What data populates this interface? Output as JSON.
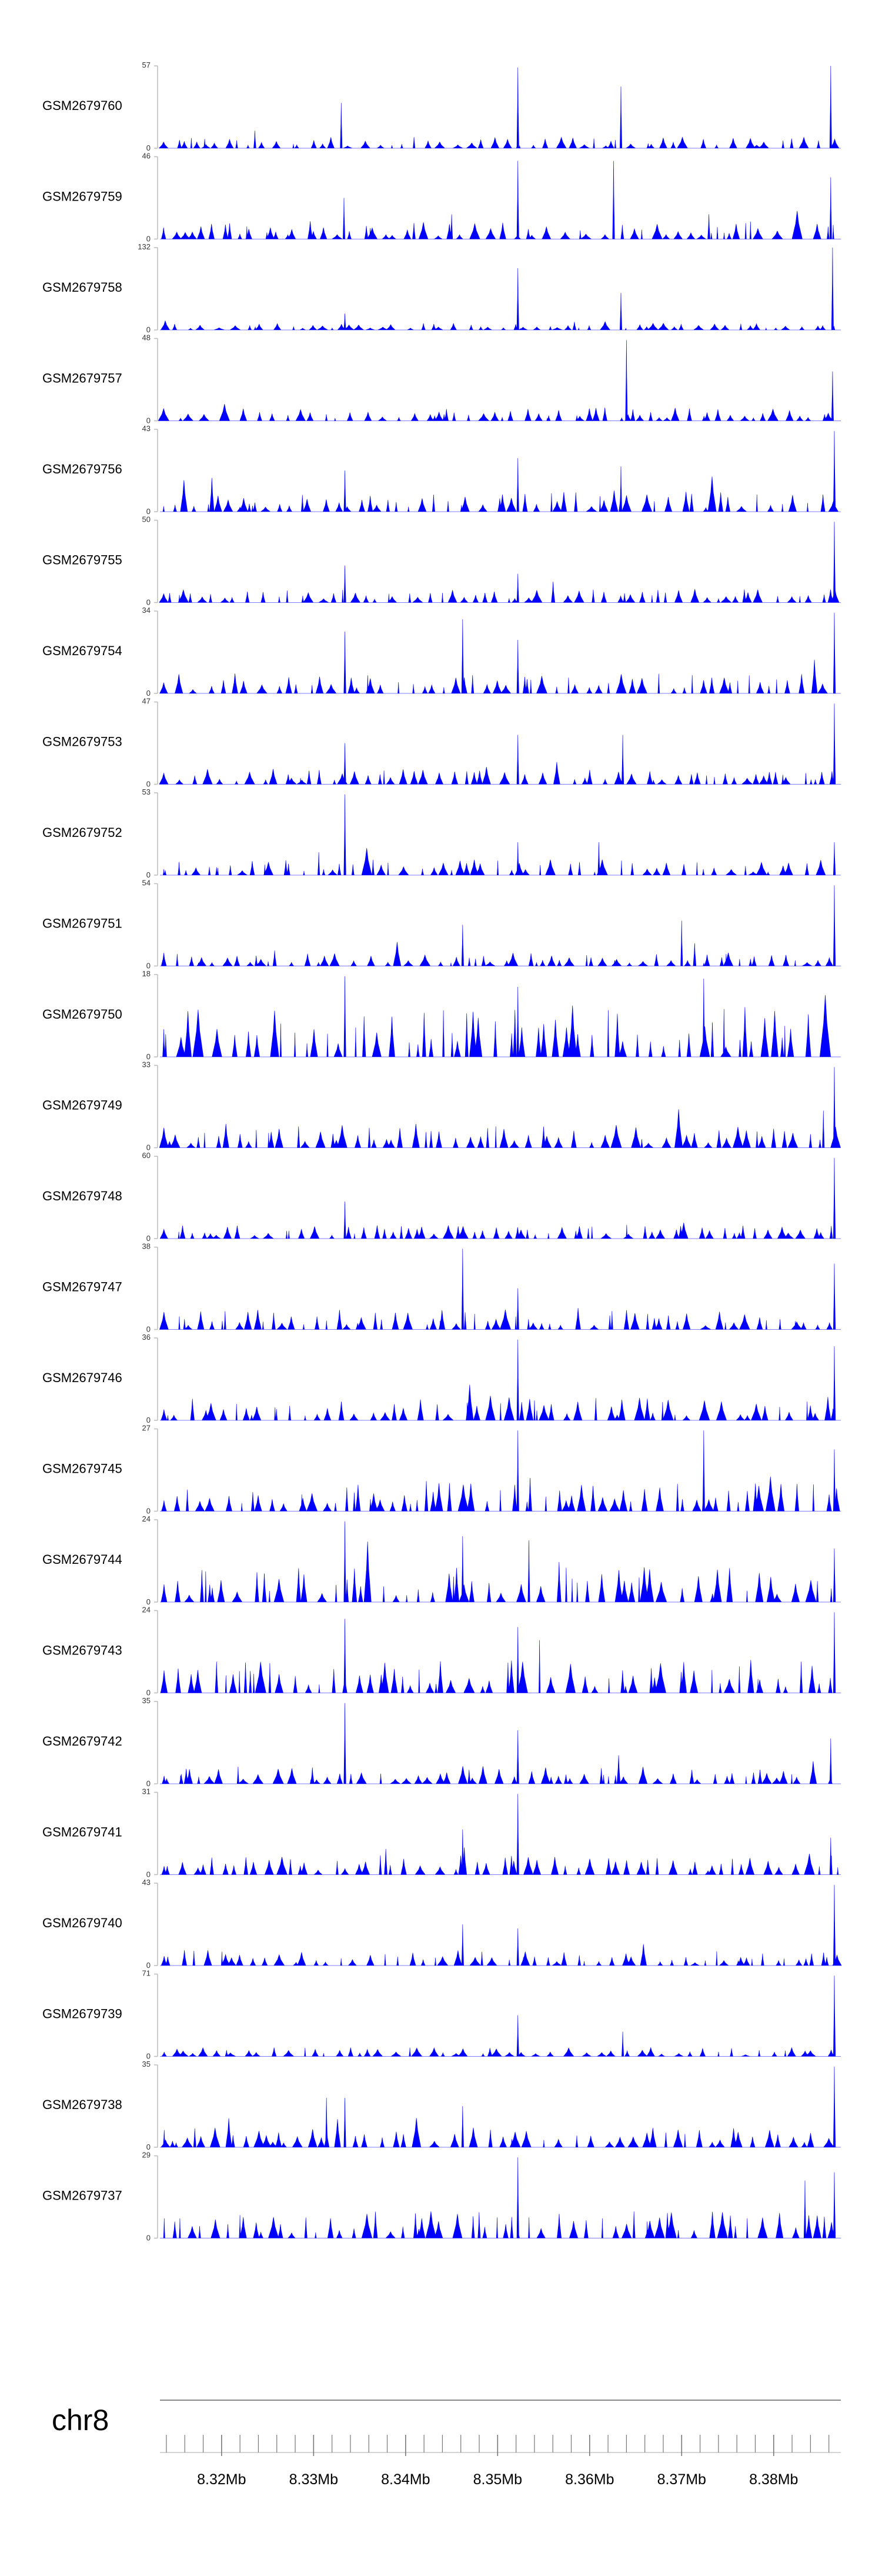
{
  "chart_data": {
    "type": "area",
    "title": "",
    "chromosome": "chr8",
    "x_unit": "Mb",
    "xlim": [
      8.3133,
      8.3873
    ],
    "x_ticks": [
      "8.32Mb",
      "8.33Mb",
      "8.34Mb",
      "8.35Mb",
      "8.36Mb",
      "8.37Mb",
      "8.38Mb"
    ],
    "x_tick_values": [
      8.32,
      8.33,
      8.34,
      8.35,
      8.36,
      8.37,
      8.38
    ],
    "minor_tick_step_mb": 0.002,
    "fill_color": "#0000ff",
    "series": [
      {
        "name": "GSM2679760",
        "ymax": 57,
        "seed": 17,
        "base": 0.1,
        "spikes": [
          [
            8.333,
            0.55
          ],
          [
            8.3522,
            0.98
          ],
          [
            8.3634,
            0.75
          ],
          [
            8.3862,
            1.0
          ]
        ]
      },
      {
        "name": "GSM2679759",
        "ymax": 46,
        "seed": 23,
        "base": 0.16,
        "spikes": [
          [
            8.3333,
            0.5
          ],
          [
            8.345,
            0.3
          ],
          [
            8.3522,
            0.95
          ],
          [
            8.3626,
            0.95
          ],
          [
            8.3862,
            0.75
          ]
        ]
      },
      {
        "name": "GSM2679758",
        "ymax": 132,
        "seed": 31,
        "base": 0.06,
        "spikes": [
          [
            8.3334,
            0.2
          ],
          [
            8.3522,
            0.75
          ],
          [
            8.3634,
            0.45
          ],
          [
            8.3864,
            1.0
          ]
        ]
      },
      {
        "name": "GSM2679757",
        "ymax": 48,
        "seed": 41,
        "base": 0.12,
        "spikes": [
          [
            8.364,
            0.98
          ],
          [
            8.3864,
            0.6
          ]
        ]
      },
      {
        "name": "GSM2679756",
        "ymax": 43,
        "seed": 53,
        "base": 0.18,
        "spikes": [
          [
            8.3334,
            0.5
          ],
          [
            8.3522,
            0.65
          ],
          [
            8.3634,
            0.55
          ],
          [
            8.3866,
            0.98
          ]
        ]
      },
      {
        "name": "GSM2679755",
        "ymax": 50,
        "seed": 61,
        "base": 0.12,
        "spikes": [
          [
            8.3334,
            0.45
          ],
          [
            8.3522,
            0.35
          ],
          [
            8.3866,
            0.98
          ]
        ]
      },
      {
        "name": "GSM2679754",
        "ymax": 34,
        "seed": 71,
        "base": 0.18,
        "spikes": [
          [
            8.3334,
            0.75
          ],
          [
            8.3462,
            0.9
          ],
          [
            8.3522,
            0.65
          ],
          [
            8.3866,
            0.98
          ]
        ]
      },
      {
        "name": "GSM2679753",
        "ymax": 47,
        "seed": 83,
        "base": 0.14,
        "spikes": [
          [
            8.3334,
            0.5
          ],
          [
            8.3522,
            0.6
          ],
          [
            8.3636,
            0.6
          ],
          [
            8.3866,
            0.98
          ]
        ]
      },
      {
        "name": "GSM2679752",
        "ymax": 53,
        "seed": 97,
        "base": 0.14,
        "spikes": [
          [
            8.3334,
            0.98
          ],
          [
            8.3522,
            0.4
          ],
          [
            8.361,
            0.4
          ],
          [
            8.3866,
            0.4
          ]
        ]
      },
      {
        "name": "GSM2679751",
        "ymax": 54,
        "seed": 101,
        "base": 0.12,
        "spikes": [
          [
            8.3462,
            0.5
          ],
          [
            8.37,
            0.55
          ],
          [
            8.3866,
            0.98
          ]
        ]
      },
      {
        "name": "GSM2679750",
        "ymax": 18,
        "seed": 109,
        "base": 0.45,
        "spikes": [
          [
            8.3334,
            0.98
          ],
          [
            8.3522,
            0.85
          ],
          [
            8.3724,
            0.95
          ]
        ]
      },
      {
        "name": "GSM2679749",
        "ymax": 33,
        "seed": 127,
        "base": 0.22,
        "spikes": [
          [
            8.3854,
            0.45
          ],
          [
            8.3866,
            0.98
          ]
        ]
      },
      {
        "name": "GSM2679748",
        "ymax": 60,
        "seed": 137,
        "base": 0.12,
        "spikes": [
          [
            8.3334,
            0.45
          ],
          [
            8.3866,
            0.98
          ]
        ]
      },
      {
        "name": "GSM2679747",
        "ymax": 38,
        "seed": 149,
        "base": 0.18,
        "spikes": [
          [
            8.3462,
            0.98
          ],
          [
            8.3522,
            0.5
          ],
          [
            8.3866,
            0.8
          ]
        ]
      },
      {
        "name": "GSM2679746",
        "ymax": 36,
        "seed": 157,
        "base": 0.22,
        "spikes": [
          [
            8.3522,
            0.98
          ],
          [
            8.3866,
            0.9
          ]
        ]
      },
      {
        "name": "GSM2679745",
        "ymax": 27,
        "seed": 167,
        "base": 0.3,
        "spikes": [
          [
            8.3522,
            0.98
          ],
          [
            8.3724,
            0.98
          ],
          [
            8.3866,
            0.75
          ]
        ]
      },
      {
        "name": "GSM2679744",
        "ymax": 24,
        "seed": 179,
        "base": 0.32,
        "spikes": [
          [
            8.3334,
            0.98
          ],
          [
            8.3462,
            0.8
          ],
          [
            8.3534,
            0.75
          ],
          [
            8.3866,
            0.65
          ]
        ]
      },
      {
        "name": "GSM2679743",
        "ymax": 24,
        "seed": 191,
        "base": 0.3,
        "spikes": [
          [
            8.3334,
            0.9
          ],
          [
            8.3522,
            0.8
          ],
          [
            8.3866,
            0.98
          ]
        ]
      },
      {
        "name": "GSM2679742",
        "ymax": 35,
        "seed": 199,
        "base": 0.16,
        "spikes": [
          [
            8.3334,
            0.98
          ],
          [
            8.3522,
            0.65
          ],
          [
            8.3862,
            0.55
          ]
        ]
      },
      {
        "name": "GSM2679741",
        "ymax": 31,
        "seed": 211,
        "base": 0.18,
        "spikes": [
          [
            8.3462,
            0.55
          ],
          [
            8.3522,
            0.98
          ],
          [
            8.3862,
            0.45
          ]
        ]
      },
      {
        "name": "GSM2679740",
        "ymax": 43,
        "seed": 223,
        "base": 0.14,
        "spikes": [
          [
            8.3462,
            0.5
          ],
          [
            8.3522,
            0.45
          ],
          [
            8.3866,
            0.98
          ]
        ]
      },
      {
        "name": "GSM2679739",
        "ymax": 71,
        "seed": 233,
        "base": 0.08,
        "spikes": [
          [
            8.3522,
            0.5
          ],
          [
            8.3636,
            0.3
          ],
          [
            8.3866,
            0.98
          ]
        ]
      },
      {
        "name": "GSM2679738",
        "ymax": 35,
        "seed": 241,
        "base": 0.18,
        "spikes": [
          [
            8.3314,
            0.6
          ],
          [
            8.3334,
            0.6
          ],
          [
            8.3462,
            0.5
          ],
          [
            8.3866,
            0.98
          ]
        ]
      },
      {
        "name": "GSM2679737",
        "ymax": 29,
        "seed": 251,
        "base": 0.24,
        "spikes": [
          [
            8.3522,
            0.98
          ],
          [
            8.3866,
            0.8
          ],
          [
            8.3834,
            0.7
          ]
        ]
      }
    ]
  }
}
